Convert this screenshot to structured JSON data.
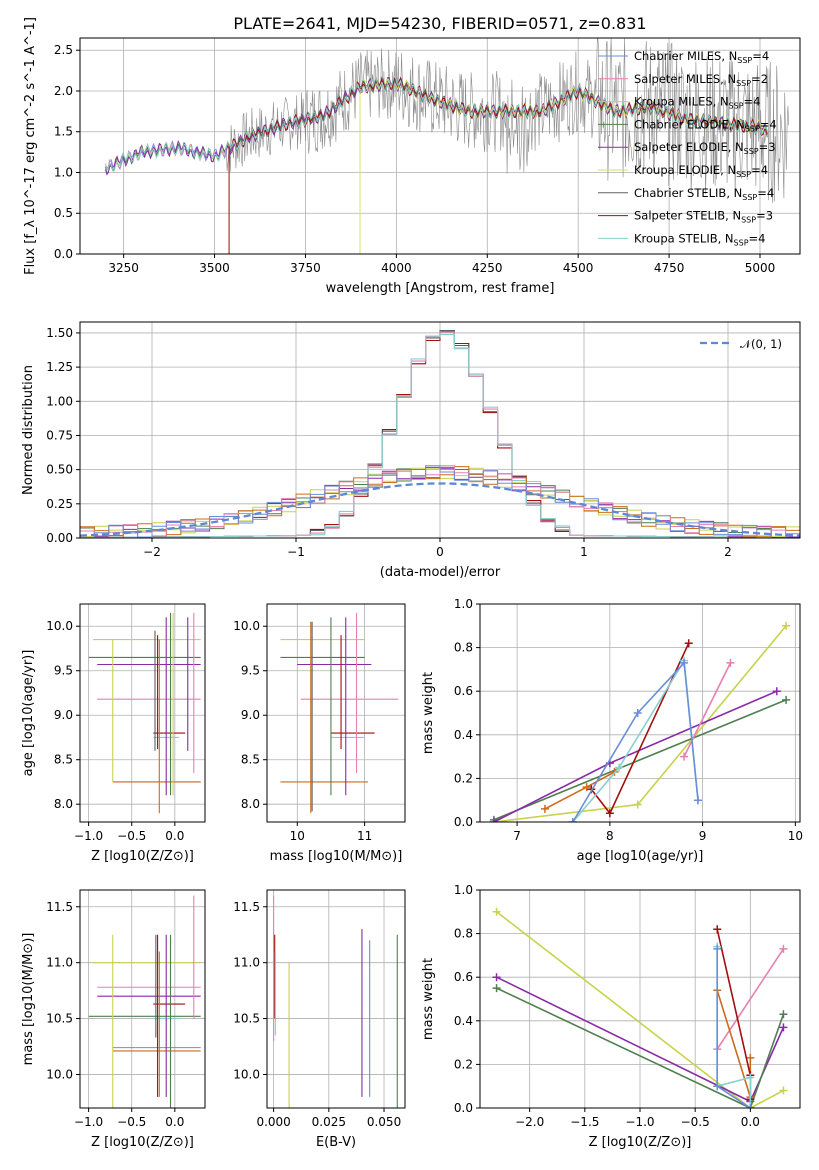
{
  "page_title": "PLATE=2641, MJD=54230, FIBERID=0571, z=0.831",
  "colors": {
    "Chabrier MILES": "#6a8fd8",
    "Salpeter MILES": "#e77fb0",
    "Kroupa MILES": "#c8d24a",
    "Chabrier ELODIE": "#4f7f4f",
    "Salpeter ELODIE": "#8a2aa6",
    "Kroupa ELODIE": "#d5e35a",
    "Chabrier STELIB": "#606060",
    "Salpeter STELIB": "#a30e0e",
    "Kroupa STELIB": "#86d0d0",
    "orange": "#cc6b1e",
    "grid": "#b0b0b0"
  },
  "chart_data": [
    {
      "id": "spectrum",
      "type": "line",
      "title": "PLATE=2641, MJD=54230, FIBERID=0571, z=0.831",
      "xlabel": "wavelength [Angstrom, rest frame]",
      "ylabel": "Flux [f_λ 10^-17 erg cm^-2 s^-1 A^-1]",
      "xlim": [
        3130,
        5110
      ],
      "ylim": [
        0,
        2.65
      ],
      "xticks": [
        3250,
        3500,
        3750,
        4000,
        4250,
        4500,
        4750,
        5000
      ],
      "yticks": [
        0.0,
        0.5,
        1.0,
        1.5,
        2.0,
        2.5
      ],
      "legend_position": "top-right",
      "legend": [
        "Chabrier MILES, N_SSP=4",
        "Salpeter MILES, N_SSP=2",
        "Kroupa MILES, N_SSP=4",
        "Chabrier ELODIE, N_SSP=4",
        "Salpeter ELODIE, N_SSP=3",
        "Kroupa ELODIE, N_SSP=4",
        "Chabrier STELIB, N_SSP=4",
        "Salpeter STELIB, N_SSP=3",
        "Kroupa STELIB, N_SSP=4"
      ],
      "continuum": [
        [
          3200,
          1.05
        ],
        [
          3300,
          1.25
        ],
        [
          3400,
          1.3
        ],
        [
          3500,
          1.2
        ],
        [
          3600,
          1.45
        ],
        [
          3700,
          1.6
        ],
        [
          3800,
          1.7
        ],
        [
          3900,
          2.05
        ],
        [
          4000,
          2.1
        ],
        [
          4100,
          1.9
        ],
        [
          4200,
          1.75
        ],
        [
          4300,
          1.75
        ],
        [
          4400,
          1.75
        ],
        [
          4500,
          2.0
        ],
        [
          4600,
          1.75
        ],
        [
          4700,
          1.8
        ],
        [
          4800,
          1.65
        ],
        [
          4900,
          1.6
        ],
        [
          5000,
          1.55
        ],
        [
          5020,
          1.5
        ]
      ],
      "grid": true
    },
    {
      "id": "residuals",
      "type": "line",
      "xlabel": "(data-model)/error",
      "ylabel": "Normed distribution",
      "xlim": [
        -2.5,
        2.5
      ],
      "ylim": [
        0,
        1.58
      ],
      "xticks": [
        -2,
        -1,
        0,
        1,
        2
      ],
      "yticks": [
        0.0,
        0.25,
        0.5,
        0.75,
        1.0,
        1.25,
        1.5
      ],
      "legend_position": "top-right",
      "legend": [
        "𝒩(0, 1)"
      ],
      "bin_width": 0.1,
      "narrow_hist_peak": 1.5,
      "wide_hist_peak": 0.45,
      "grid": true
    },
    {
      "id": "age-vs-z",
      "type": "scatter",
      "xlabel": "Z [log10(Z/Z⊙)]",
      "ylabel": "age  [log10(age/yr)]",
      "xlim": [
        -1.1,
        0.35
      ],
      "ylim": [
        7.8,
        10.25
      ],
      "xticks": [
        -1.0,
        -0.5,
        0.0
      ],
      "yticks": [
        8.0,
        8.5,
        9.0,
        9.5,
        10.0
      ],
      "segments": [
        {
          "c": "Kroupa MILES",
          "x": [
            -0.95,
            0.3
          ],
          "y": [
            9.85,
            9.85
          ]
        },
        {
          "c": "Chabrier ELODIE",
          "x": [
            -1.0,
            0.3
          ],
          "y": [
            9.65,
            9.65
          ]
        },
        {
          "c": "Salpeter ELODIE",
          "x": [
            -0.9,
            0.3
          ],
          "y": [
            9.57,
            9.57
          ]
        },
        {
          "c": "Salpeter MILES",
          "x": [
            -0.9,
            0.3
          ],
          "y": [
            9.18,
            9.18
          ]
        },
        {
          "c": "Kroupa MILES",
          "x": [
            -0.72,
            0.3
          ],
          "y": [
            8.25,
            8.25
          ]
        },
        {
          "c": "orange",
          "x": [
            -0.72,
            0.3
          ],
          "y": [
            8.25,
            8.25
          ]
        },
        {
          "c": "Salpeter STELIB",
          "x": [
            -0.25,
            0.12
          ],
          "y": [
            8.8,
            8.8
          ]
        },
        {
          "c": "Kroupa STELIB",
          "x": [
            -0.25,
            0.05
          ],
          "y": [
            8.75,
            8.75
          ]
        },
        {
          "c": "Kroupa MILES",
          "x": [
            -0.72,
            -0.72
          ],
          "y": [
            8.25,
            9.85
          ]
        },
        {
          "c": "Chabrier STELIB",
          "x": [
            -0.23,
            -0.23
          ],
          "y": [
            8.6,
            9.95
          ]
        },
        {
          "c": "Salpeter STELIB",
          "x": [
            -0.2,
            -0.2
          ],
          "y": [
            8.62,
            9.9
          ]
        },
        {
          "c": "orange",
          "x": [
            -0.18,
            -0.18
          ],
          "y": [
            7.9,
            9.85
          ]
        },
        {
          "c": "Salpeter ELODIE",
          "x": [
            -0.1,
            -0.1
          ],
          "y": [
            8.1,
            10.1
          ]
        },
        {
          "c": "Chabrier ELODIE",
          "x": [
            -0.05,
            -0.05
          ],
          "y": [
            8.1,
            10.15
          ]
        },
        {
          "c": "Kroupa MILES",
          "x": [
            -0.02,
            -0.02
          ],
          "y": [
            8.1,
            10.15
          ]
        },
        {
          "c": "Salpeter ELODIE",
          "x": [
            0.15,
            0.15
          ],
          "y": [
            8.6,
            10.1
          ]
        },
        {
          "c": "Salpeter MILES",
          "x": [
            0.22,
            0.22
          ],
          "y": [
            8.35,
            10.15
          ]
        }
      ],
      "grid": true
    },
    {
      "id": "age-vs-mass",
      "type": "scatter",
      "xlabel": "mass [log10(M/M⊙)]",
      "ylabel": "",
      "xlim": [
        9.55,
        11.6
      ],
      "ylim": [
        7.8,
        10.25
      ],
      "xticks": [
        10,
        11
      ],
      "yticks": [
        8.0,
        8.5,
        9.0,
        9.5,
        10.0
      ],
      "segments": [
        {
          "c": "Kroupa MILES",
          "x": [
            9.75,
            11.0
          ],
          "y": [
            9.85,
            9.85
          ]
        },
        {
          "c": "Chabrier ELODIE",
          "x": [
            9.75,
            11.0
          ],
          "y": [
            9.65,
            9.65
          ]
        },
        {
          "c": "Salpeter ELODIE",
          "x": [
            10.0,
            11.1
          ],
          "y": [
            9.57,
            9.57
          ]
        },
        {
          "c": "Salpeter MILES",
          "x": [
            10.05,
            11.5
          ],
          "y": [
            9.18,
            9.18
          ]
        },
        {
          "c": "orange",
          "x": [
            9.75,
            11.05
          ],
          "y": [
            8.25,
            8.25
          ]
        },
        {
          "c": "Salpeter STELIB",
          "x": [
            10.5,
            11.15
          ],
          "y": [
            8.8,
            8.8
          ]
        },
        {
          "c": "Kroupa STELIB",
          "x": [
            10.5,
            11.0
          ],
          "y": [
            8.75,
            8.75
          ]
        },
        {
          "c": "orange",
          "x": [
            10.2,
            10.2
          ],
          "y": [
            7.9,
            10.05
          ]
        },
        {
          "c": "Chabrier STELIB",
          "x": [
            10.22,
            10.22
          ],
          "y": [
            7.92,
            10.05
          ]
        },
        {
          "c": "Chabrier ELODIE",
          "x": [
            10.5,
            10.5
          ],
          "y": [
            8.1,
            10.1
          ]
        },
        {
          "c": "Salpeter STELIB",
          "x": [
            10.65,
            10.65
          ],
          "y": [
            8.62,
            9.9
          ]
        },
        {
          "c": "Salpeter ELODIE",
          "x": [
            10.72,
            10.72
          ],
          "y": [
            8.1,
            10.1
          ]
        },
        {
          "c": "Salpeter MILES",
          "x": [
            10.88,
            10.88
          ],
          "y": [
            8.35,
            10.15
          ]
        }
      ],
      "grid": true
    },
    {
      "id": "mass-weight-vs-age",
      "type": "line",
      "xlabel": "age  [log10(age/yr)]",
      "ylabel": "mass weight",
      "xlim": [
        6.6,
        10.05
      ],
      "ylim": [
        0,
        1.0
      ],
      "xticks": [
        7,
        8,
        9,
        10
      ],
      "yticks": [
        0.0,
        0.2,
        0.4,
        0.6,
        0.8,
        1.0
      ],
      "series": [
        {
          "c": "Kroupa MILES",
          "x": [
            6.75,
            8.3,
            9.9
          ],
          "y": [
            0.0,
            0.08,
            0.9
          ]
        },
        {
          "c": "Chabrier ELODIE",
          "x": [
            6.75,
            9.9
          ],
          "y": [
            0.01,
            0.56
          ]
        },
        {
          "c": "Salpeter ELODIE",
          "x": [
            6.75,
            8.0,
            9.8
          ],
          "y": [
            0.0,
            0.27,
            0.6
          ]
        },
        {
          "c": "Salpeter MILES",
          "x": [
            8.8,
            9.3
          ],
          "y": [
            0.3,
            0.73
          ]
        },
        {
          "c": "orange",
          "x": [
            7.3,
            7.75,
            8.05
          ],
          "y": [
            0.06,
            0.16,
            0.23
          ]
        },
        {
          "c": "Salpeter STELIB",
          "x": [
            7.8,
            8.0,
            8.85
          ],
          "y": [
            0.15,
            0.04,
            0.82
          ]
        },
        {
          "c": "Kroupa STELIB",
          "x": [
            7.6,
            8.1,
            8.8,
            8.95
          ],
          "y": [
            0.0,
            0.25,
            0.74,
            0.1
          ]
        },
        {
          "c": "Chabrier MILES",
          "x": [
            7.6,
            8.3,
            8.8,
            8.95
          ],
          "y": [
            0.0,
            0.5,
            0.73,
            0.1
          ]
        }
      ],
      "grid": true
    },
    {
      "id": "mass-vs-z",
      "type": "scatter",
      "xlabel": "Z [log10(Z/Z⊙)]",
      "ylabel": "mass [log10(M/M⊙)]",
      "xlim": [
        -1.1,
        0.35
      ],
      "ylim": [
        9.7,
        11.65
      ],
      "xticks": [
        -1.0,
        -0.5,
        0.0
      ],
      "yticks": [
        10.0,
        10.5,
        11.0,
        11.5
      ],
      "segments": [
        {
          "c": "Kroupa MILES",
          "x": [
            -0.95,
            0.3
          ],
          "y": [
            11.0,
            11.0
          ]
        },
        {
          "c": "Salpeter MILES",
          "x": [
            -0.9,
            0.3
          ],
          "y": [
            10.78,
            10.78
          ]
        },
        {
          "c": "Salpeter ELODIE",
          "x": [
            -0.9,
            0.3
          ],
          "y": [
            10.7,
            10.7
          ]
        },
        {
          "c": "Salpeter STELIB",
          "x": [
            -0.25,
            0.12
          ],
          "y": [
            10.63,
            10.63
          ]
        },
        {
          "c": "Chabrier ELODIE",
          "x": [
            -1.0,
            0.3
          ],
          "y": [
            10.52,
            10.52
          ]
        },
        {
          "c": "Kroupa STELIB",
          "x": [
            -0.25,
            0.05
          ],
          "y": [
            10.5,
            10.5
          ]
        },
        {
          "c": "Chabrier MILES",
          "x": [
            -0.72,
            0.3
          ],
          "y": [
            10.24,
            10.24
          ]
        },
        {
          "c": "orange",
          "x": [
            -0.72,
            0.3
          ],
          "y": [
            10.21,
            10.21
          ]
        },
        {
          "c": "Kroupa MILES",
          "x": [
            -0.72,
            -0.72
          ],
          "y": [
            9.7,
            11.25
          ]
        },
        {
          "c": "Chabrier STELIB",
          "x": [
            -0.22,
            -0.22
          ],
          "y": [
            10.33,
            11.25
          ]
        },
        {
          "c": "Salpeter STELIB",
          "x": [
            -0.2,
            -0.2
          ],
          "y": [
            9.8,
            11.25
          ]
        },
        {
          "c": "orange",
          "x": [
            -0.18,
            -0.18
          ],
          "y": [
            9.8,
            11.1
          ]
        },
        {
          "c": "Salpeter ELODIE",
          "x": [
            -0.1,
            -0.1
          ],
          "y": [
            9.8,
            11.25
          ]
        },
        {
          "c": "Chabrier ELODIE",
          "x": [
            -0.05,
            -0.05
          ],
          "y": [
            9.7,
            11.25
          ]
        },
        {
          "c": "Salpeter MILES",
          "x": [
            0.22,
            0.22
          ],
          "y": [
            10.5,
            11.6
          ]
        }
      ],
      "grid": true
    },
    {
      "id": "mass-vs-ebv",
      "type": "scatter",
      "xlabel": "E(B-V)",
      "ylabel": "",
      "xlim": [
        -0.003,
        0.0595
      ],
      "ylim": [
        9.7,
        11.65
      ],
      "xticks": [
        0.0,
        0.025,
        0.05
      ],
      "xtick_labels": [
        "0.000",
        "0.025",
        "0.050"
      ],
      "yticks": [
        10.0,
        10.5,
        11.0,
        11.5
      ],
      "segments": [
        {
          "c": "Salpeter MILES",
          "x": [
            0.0,
            0.0
          ],
          "y": [
            10.3,
            11.6
          ]
        },
        {
          "c": "Salpeter STELIB",
          "x": [
            0.0005,
            0.0005
          ],
          "y": [
            10.5,
            11.25
          ]
        },
        {
          "c": "Kroupa STELIB",
          "x": [
            0.0008,
            0.0008
          ],
          "y": [
            10.35,
            11.1
          ]
        },
        {
          "c": "Kroupa MILES",
          "x": [
            0.007,
            0.007
          ],
          "y": [
            9.7,
            11.0
          ]
        },
        {
          "c": "Salpeter ELODIE",
          "x": [
            0.04,
            0.04
          ],
          "y": [
            9.8,
            11.3
          ]
        },
        {
          "c": "Chabrier MILES",
          "x": [
            0.0435,
            0.0435
          ],
          "y": [
            9.8,
            11.2
          ]
        },
        {
          "c": "Chabrier ELODIE",
          "x": [
            0.056,
            0.056
          ],
          "y": [
            9.7,
            11.25
          ]
        }
      ],
      "grid": true
    },
    {
      "id": "mass-weight-vs-z",
      "type": "line",
      "xlabel": "Z [log10(Z/Z⊙)]",
      "ylabel": "mass weight",
      "xlim": [
        -2.45,
        0.45
      ],
      "ylim": [
        0,
        1.0
      ],
      "xticks": [
        -2.0,
        -1.5,
        -1.0,
        -0.5,
        0.0
      ],
      "yticks": [
        0.0,
        0.2,
        0.4,
        0.6,
        0.8,
        1.0
      ],
      "series": [
        {
          "c": "Kroupa MILES",
          "x": [
            -2.3,
            0.0,
            0.3
          ],
          "y": [
            0.9,
            0.0,
            0.08
          ]
        },
        {
          "c": "Salpeter ELODIE",
          "x": [
            -2.3,
            0.0,
            0.3
          ],
          "y": [
            0.6,
            0.03,
            0.37
          ]
        },
        {
          "c": "Chabrier ELODIE",
          "x": [
            -2.3,
            0.0,
            0.3
          ],
          "y": [
            0.55,
            0.0,
            0.43
          ]
        },
        {
          "c": "Salpeter MILES",
          "x": [
            -0.3,
            0.3
          ],
          "y": [
            0.27,
            0.73
          ]
        },
        {
          "c": "orange",
          "x": [
            -0.3,
            0.0,
            0.0
          ],
          "y": [
            0.54,
            0.05,
            0.23
          ]
        },
        {
          "c": "Salpeter STELIB",
          "x": [
            -0.3,
            0.0,
            0.0
          ],
          "y": [
            0.82,
            0.15,
            0.04
          ]
        },
        {
          "c": "Kroupa STELIB",
          "x": [
            -0.3,
            -0.3,
            0.0,
            0.0
          ],
          "y": [
            0.74,
            0.1,
            0.14,
            0.0
          ]
        },
        {
          "c": "Chabrier MILES",
          "x": [
            -0.3,
            -0.3,
            0.0
          ],
          "y": [
            0.73,
            0.1,
            0.0
          ]
        }
      ],
      "grid": true
    }
  ]
}
